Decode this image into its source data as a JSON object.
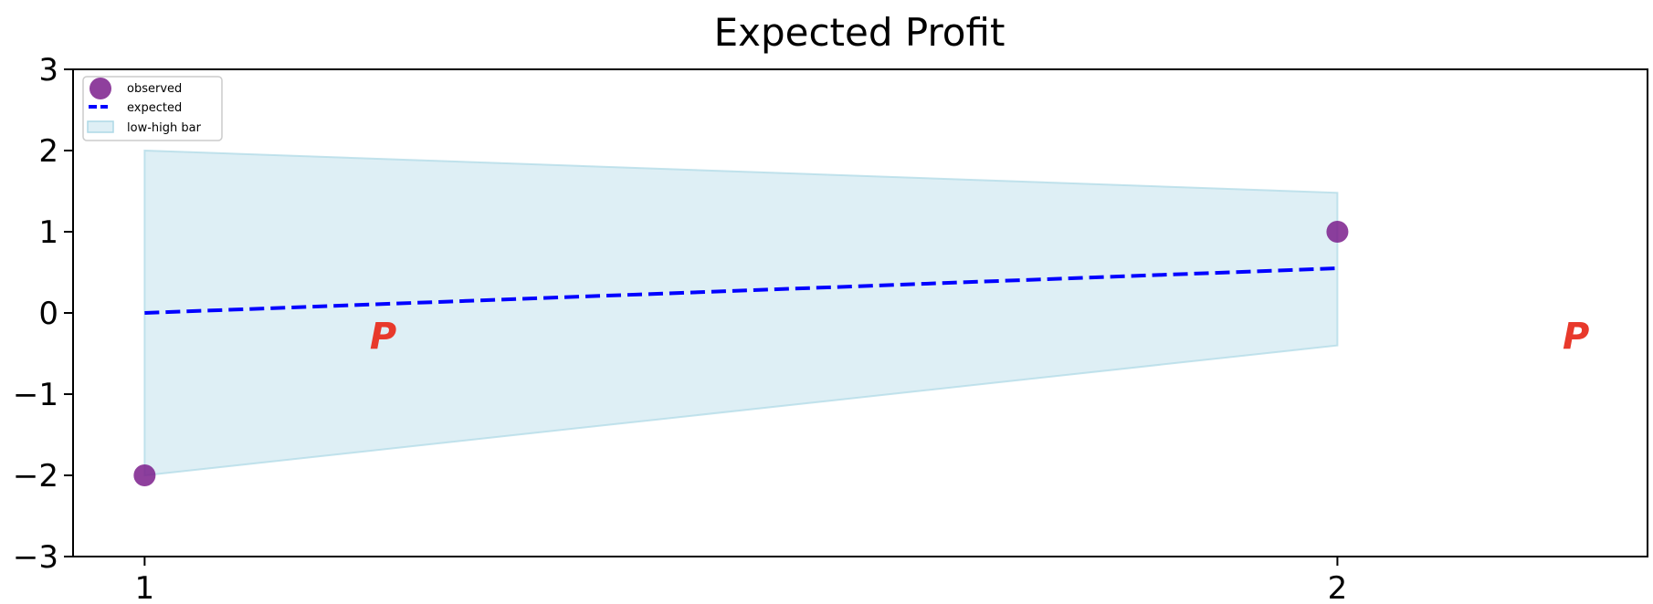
{
  "chart_data": {
    "type": "line",
    "title": "Expected Profit",
    "xlabel": "",
    "ylabel": "",
    "xlim": [
      0.94,
      2.26
    ],
    "ylim": [
      -3,
      3
    ],
    "x_ticks": [
      1,
      2
    ],
    "y_ticks": [
      -3,
      -2,
      -1,
      0,
      1,
      2,
      3
    ],
    "series": [
      {
        "name": "observed",
        "type": "scatter",
        "color": "#7B1F8C",
        "x": [
          1,
          2
        ],
        "y": [
          -2,
          1
        ]
      },
      {
        "name": "expected",
        "type": "line",
        "style": "dashed",
        "color": "#0000FF",
        "x": [
          1,
          2
        ],
        "y": [
          0,
          0.55
        ]
      },
      {
        "name": "low-high bar",
        "type": "area",
        "color": "#ADD8E6",
        "x": [
          1,
          2
        ],
        "low": [
          -2,
          -0.4
        ],
        "high": [
          2,
          1.48
        ]
      }
    ],
    "legend": {
      "placement": "top-left",
      "entries": [
        "observed",
        "expected",
        "low-high bar"
      ]
    },
    "grid": false,
    "annotations": [
      {
        "text": "P",
        "x": 1.2,
        "y": -0.28,
        "color": "#E8392B"
      },
      {
        "text": "P",
        "x": 2.2,
        "y": -0.28,
        "color": "#E8392B"
      }
    ]
  }
}
